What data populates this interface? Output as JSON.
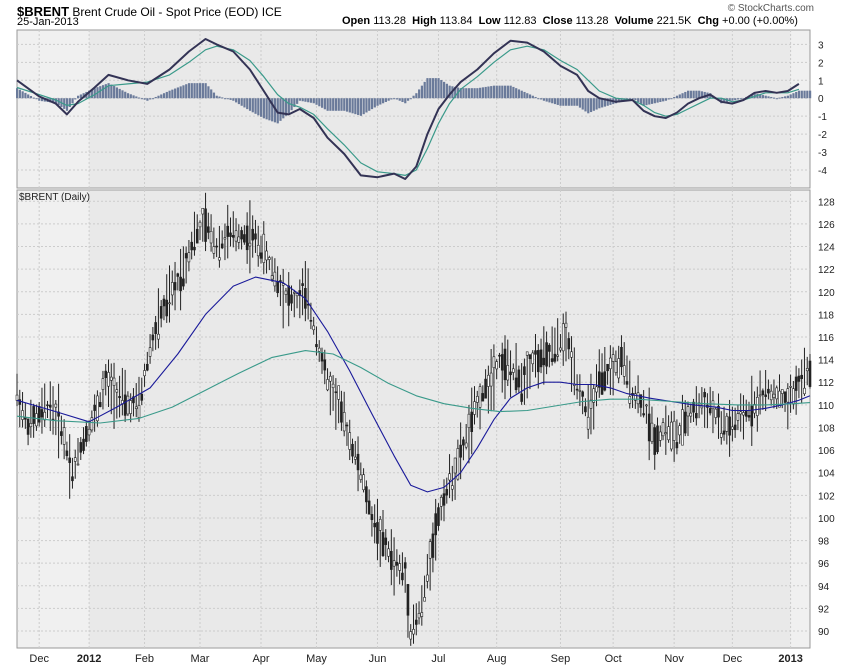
{
  "header": {
    "symbol": "$BRENT",
    "name": "Brent Crude Oil - Spot Price (EOD)",
    "exchange": "ICE",
    "date": "25-Jan-2013",
    "brand": "© StockCharts.com",
    "open_label": "Open",
    "open": "113.28",
    "high_label": "High",
    "high": "113.84",
    "low_label": "Low",
    "low": "112.83",
    "close_label": "Close",
    "close": "113.28",
    "volume_label": "Volume",
    "volume": "221.5K",
    "chg_label": "Chg",
    "chg": "+0.00 (+0.00%)"
  },
  "chart_data": [
    {
      "type": "line",
      "title": "",
      "ylim": [
        -5,
        3.8
      ],
      "y_ticks": [
        3,
        2,
        1,
        0,
        -1,
        -2,
        -3,
        -4
      ],
      "grid": true,
      "series": [
        {
          "name": "",
          "role": "macd",
          "color": "#333355",
          "points": [
            [
              0,
              1.0
            ],
            [
              8,
              0.1
            ],
            [
              14,
              -0.3
            ],
            [
              18,
              -0.9
            ],
            [
              22,
              -0.2
            ],
            [
              28,
              0.6
            ],
            [
              33,
              1.3
            ],
            [
              40,
              1.0
            ],
            [
              47,
              0.8
            ],
            [
              55,
              1.6
            ],
            [
              62,
              2.6
            ],
            [
              68,
              3.3
            ],
            [
              72,
              3.0
            ],
            [
              78,
              2.6
            ],
            [
              84,
              1.6
            ],
            [
              89,
              0.4
            ],
            [
              94,
              -0.8
            ],
            [
              98,
              -0.9
            ],
            [
              102,
              -0.6
            ],
            [
              107,
              -1.1
            ],
            [
              112,
              -2.2
            ],
            [
              118,
              -3.1
            ],
            [
              124,
              -4.3
            ],
            [
              130,
              -4.4
            ],
            [
              136,
              -4.2
            ],
            [
              140,
              -4.5
            ],
            [
              144,
              -3.8
            ],
            [
              148,
              -2.0
            ],
            [
              152,
              -0.6
            ],
            [
              156,
              0.2
            ],
            [
              160,
              0.9
            ],
            [
              166,
              1.6
            ],
            [
              172,
              2.5
            ],
            [
              178,
              3.2
            ],
            [
              184,
              3.1
            ],
            [
              190,
              2.6
            ],
            [
              196,
              1.8
            ],
            [
              202,
              1.3
            ],
            [
              206,
              0.4
            ],
            [
              210,
              0.0
            ],
            [
              216,
              -0.2
            ],
            [
              222,
              -0.1
            ],
            [
              226,
              -0.7
            ],
            [
              230,
              -1.0
            ],
            [
              234,
              -1.1
            ],
            [
              238,
              -0.8
            ],
            [
              242,
              -0.3
            ],
            [
              246,
              0.0
            ],
            [
              250,
              0.2
            ],
            [
              254,
              -0.2
            ],
            [
              258,
              -0.3
            ],
            [
              262,
              -0.1
            ],
            [
              266,
              0.3
            ],
            [
              270,
              0.4
            ],
            [
              274,
              0.3
            ],
            [
              278,
              0.4
            ],
            [
              282,
              0.8
            ]
          ]
        },
        {
          "name": "",
          "role": "signal",
          "color": "#3a9a8a",
          "points": [
            [
              0,
              0.6
            ],
            [
              8,
              0.2
            ],
            [
              14,
              -0.1
            ],
            [
              18,
              -0.4
            ],
            [
              22,
              -0.3
            ],
            [
              28,
              0.2
            ],
            [
              33,
              0.7
            ],
            [
              40,
              0.8
            ],
            [
              47,
              0.9
            ],
            [
              55,
              1.3
            ],
            [
              62,
              2.0
            ],
            [
              68,
              2.7
            ],
            [
              72,
              2.9
            ],
            [
              78,
              2.7
            ],
            [
              84,
              2.1
            ],
            [
              89,
              1.2
            ],
            [
              94,
              0.2
            ],
            [
              98,
              -0.3
            ],
            [
              102,
              -0.5
            ],
            [
              107,
              -0.9
            ],
            [
              112,
              -1.7
            ],
            [
              118,
              -2.6
            ],
            [
              124,
              -3.6
            ],
            [
              130,
              -4.1
            ],
            [
              136,
              -4.2
            ],
            [
              140,
              -4.3
            ],
            [
              144,
              -4.0
            ],
            [
              148,
              -2.8
            ],
            [
              152,
              -1.4
            ],
            [
              156,
              -0.3
            ],
            [
              160,
              0.5
            ],
            [
              166,
              1.2
            ],
            [
              172,
              2.0
            ],
            [
              178,
              2.7
            ],
            [
              184,
              2.9
            ],
            [
              190,
              2.7
            ],
            [
              196,
              2.1
            ],
            [
              202,
              1.6
            ],
            [
              206,
              1.0
            ],
            [
              210,
              0.4
            ],
            [
              216,
              0.0
            ],
            [
              222,
              -0.1
            ],
            [
              226,
              -0.4
            ],
            [
              230,
              -0.8
            ],
            [
              234,
              -1.0
            ],
            [
              238,
              -0.9
            ],
            [
              242,
              -0.6
            ],
            [
              246,
              -0.3
            ],
            [
              250,
              0.0
            ],
            [
              254,
              0.0
            ],
            [
              258,
              -0.2
            ],
            [
              262,
              -0.1
            ],
            [
              266,
              0.1
            ],
            [
              270,
              0.3
            ],
            [
              274,
              0.3
            ],
            [
              278,
              0.3
            ],
            [
              282,
              0.5
            ]
          ]
        }
      ]
    },
    {
      "type": "candlestick",
      "title": "$BRENT (Daily)",
      "ylim": [
        88.5,
        129
      ],
      "y_ticks": [
        128,
        126,
        124,
        122,
        120,
        118,
        116,
        114,
        112,
        110,
        108,
        106,
        104,
        102,
        100,
        98,
        96,
        94,
        92,
        90
      ],
      "x_ticks": [
        {
          "label": "Dec",
          "bold": false,
          "x": 8
        },
        {
          "label": "2012",
          "bold": true,
          "x": 26
        },
        {
          "label": "Feb",
          "bold": false,
          "x": 46
        },
        {
          "label": "Mar",
          "bold": false,
          "x": 66
        },
        {
          "label": "Apr",
          "bold": false,
          "x": 88
        },
        {
          "label": "May",
          "bold": false,
          "x": 108
        },
        {
          "label": "Jun",
          "bold": false,
          "x": 130
        },
        {
          "label": "Jul",
          "bold": false,
          "x": 152
        },
        {
          "label": "Aug",
          "bold": false,
          "x": 173
        },
        {
          "label": "Sep",
          "bold": false,
          "x": 196
        },
        {
          "label": "Oct",
          "bold": false,
          "x": 215
        },
        {
          "label": "Nov",
          "bold": false,
          "x": 237
        },
        {
          "label": "Dec",
          "bold": false,
          "x": 258
        },
        {
          "label": "2013",
          "bold": true,
          "x": 279
        }
      ],
      "grid": true,
      "price_series": {
        "name": "$BRENT",
        "color": "#222222",
        "points": [
          [
            0,
            111
          ],
          [
            4,
            108
          ],
          [
            8,
            109
          ],
          [
            12,
            110
          ],
          [
            16,
            108
          ],
          [
            20,
            104
          ],
          [
            24,
            107
          ],
          [
            28,
            109
          ],
          [
            32,
            112
          ],
          [
            36,
            111
          ],
          [
            40,
            110
          ],
          [
            44,
            110
          ],
          [
            48,
            115
          ],
          [
            52,
            118
          ],
          [
            56,
            120
          ],
          [
            60,
            122
          ],
          [
            64,
            125
          ],
          [
            68,
            126
          ],
          [
            72,
            124
          ],
          [
            76,
            125
          ],
          [
            80,
            125
          ],
          [
            84,
            125
          ],
          [
            88,
            124
          ],
          [
            92,
            122
          ],
          [
            96,
            120
          ],
          [
            100,
            119
          ],
          [
            104,
            120
          ],
          [
            108,
            116
          ],
          [
            112,
            112
          ],
          [
            116,
            110
          ],
          [
            120,
            107
          ],
          [
            124,
            104
          ],
          [
            128,
            100
          ],
          [
            132,
            98
          ],
          [
            136,
            96
          ],
          [
            140,
            95
          ],
          [
            142,
            90
          ],
          [
            146,
            92
          ],
          [
            150,
            98
          ],
          [
            154,
            102
          ],
          [
            158,
            104
          ],
          [
            162,
            107
          ],
          [
            166,
            110
          ],
          [
            170,
            112
          ],
          [
            174,
            114
          ],
          [
            178,
            113
          ],
          [
            182,
            112
          ],
          [
            186,
            114
          ],
          [
            190,
            114
          ],
          [
            194,
            115
          ],
          [
            198,
            116
          ],
          [
            202,
            112
          ],
          [
            206,
            109
          ],
          [
            210,
            112
          ],
          [
            214,
            113
          ],
          [
            218,
            114
          ],
          [
            222,
            111
          ],
          [
            226,
            110
          ],
          [
            230,
            107
          ],
          [
            234,
            108
          ],
          [
            238,
            107
          ],
          [
            242,
            109
          ],
          [
            246,
            110
          ],
          [
            250,
            110
          ],
          [
            254,
            108
          ],
          [
            258,
            108
          ],
          [
            262,
            109
          ],
          [
            266,
            110
          ],
          [
            270,
            111
          ],
          [
            274,
            111
          ],
          [
            278,
            110
          ],
          [
            282,
            112
          ],
          [
            286,
            113
          ]
        ]
      },
      "ma_series": [
        {
          "name": "",
          "role": "ma-short",
          "color": "#1a1a9a",
          "points": [
            [
              0,
              110.4
            ],
            [
              14,
              109.4
            ],
            [
              26,
              108.5
            ],
            [
              36,
              109.8
            ],
            [
              48,
              111.5
            ],
            [
              58,
              114.5
            ],
            [
              68,
              118.0
            ],
            [
              78,
              120.5
            ],
            [
              86,
              121.3
            ],
            [
              96,
              120.8
            ],
            [
              104,
              119.4
            ],
            [
              112,
              116.5
            ],
            [
              120,
              113.0
            ],
            [
              128,
              109.2
            ],
            [
              136,
              105.5
            ],
            [
              142,
              102.9
            ],
            [
              148,
              102.3
            ],
            [
              154,
              102.7
            ],
            [
              160,
              104.0
            ],
            [
              166,
              106.2
            ],
            [
              172,
              108.7
            ],
            [
              178,
              110.6
            ],
            [
              184,
              111.5
            ],
            [
              190,
              112.0
            ],
            [
              196,
              112.0
            ],
            [
              202,
              111.8
            ],
            [
              208,
              111.8
            ],
            [
              214,
              111.5
            ],
            [
              220,
              111.0
            ],
            [
              228,
              110.6
            ],
            [
              236,
              110.3
            ],
            [
              244,
              110.0
            ],
            [
              252,
              109.8
            ],
            [
              258,
              109.5
            ],
            [
              264,
              109.5
            ],
            [
              270,
              109.7
            ],
            [
              276,
              110.0
            ],
            [
              282,
              110.4
            ],
            [
              286,
              110.8
            ]
          ]
        },
        {
          "name": "",
          "role": "ma-long",
          "color": "#3a9a8a",
          "points": [
            [
              0,
              109.0
            ],
            [
              14,
              108.6
            ],
            [
              30,
              108.4
            ],
            [
              44,
              108.8
            ],
            [
              56,
              109.8
            ],
            [
              68,
              111.3
            ],
            [
              80,
              112.8
            ],
            [
              92,
              114.2
            ],
            [
              104,
              114.8
            ],
            [
              114,
              114.5
            ],
            [
              124,
              113.3
            ],
            [
              134,
              111.9
            ],
            [
              144,
              110.8
            ],
            [
              154,
              110.1
            ],
            [
              164,
              109.7
            ],
            [
              174,
              109.4
            ],
            [
              184,
              109.5
            ],
            [
              194,
              109.9
            ],
            [
              204,
              110.3
            ],
            [
              214,
              110.5
            ],
            [
              224,
              110.5
            ],
            [
              236,
              110.3
            ],
            [
              248,
              110.1
            ],
            [
              260,
              110.0
            ],
            [
              270,
              110.0
            ],
            [
              280,
              110.1
            ],
            [
              286,
              110.2
            ]
          ]
        }
      ]
    }
  ]
}
